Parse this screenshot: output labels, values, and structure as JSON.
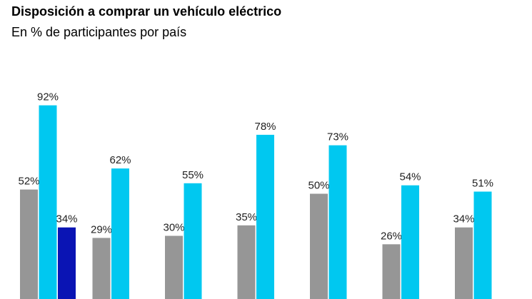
{
  "chart_data": {
    "type": "bar",
    "title": "Disposición a comprar un vehículo eléctrico",
    "subtitle": "En % de participantes por país",
    "xlabel": "",
    "ylabel": "",
    "ylim": [
      0,
      100
    ],
    "grid": false,
    "groups": [
      {
        "bars": [
          {
            "value": 52,
            "label": "52%",
            "color": "#969696"
          },
          {
            "value": 92,
            "label": "92%",
            "color": "#00c8f0"
          },
          {
            "value": 34,
            "label": "34%",
            "color": "#0a14b4"
          }
        ]
      },
      {
        "bars": [
          {
            "value": 29,
            "label": "29%",
            "color": "#969696"
          },
          {
            "value": 62,
            "label": "62%",
            "color": "#00c8f0"
          }
        ]
      },
      {
        "bars": [
          {
            "value": 30,
            "label": "30%",
            "color": "#969696"
          },
          {
            "value": 55,
            "label": "55%",
            "color": "#00c8f0"
          }
        ]
      },
      {
        "bars": [
          {
            "value": 35,
            "label": "35%",
            "color": "#969696"
          },
          {
            "value": 78,
            "label": "78%",
            "color": "#00c8f0"
          }
        ]
      },
      {
        "bars": [
          {
            "value": 50,
            "label": "50%",
            "color": "#969696"
          },
          {
            "value": 73,
            "label": "73%",
            "color": "#00c8f0"
          }
        ]
      },
      {
        "bars": [
          {
            "value": 26,
            "label": "26%",
            "color": "#969696"
          },
          {
            "value": 54,
            "label": "54%",
            "color": "#00c8f0"
          }
        ]
      },
      {
        "bars": [
          {
            "value": 34,
            "label": "34%",
            "color": "#969696"
          },
          {
            "value": 51,
            "label": "51%",
            "color": "#00c8f0"
          }
        ]
      }
    ]
  }
}
